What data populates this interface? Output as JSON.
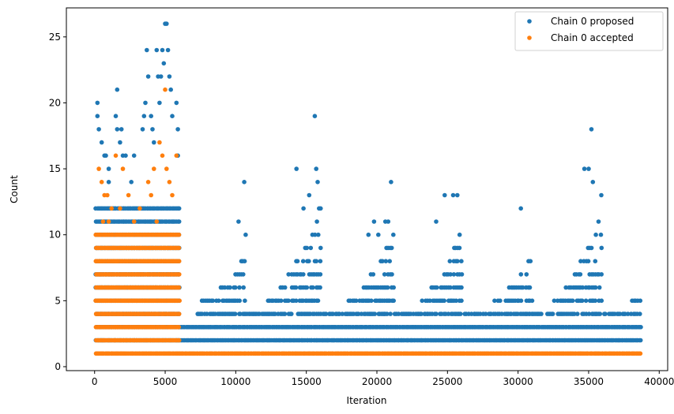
{
  "chart_data": {
    "type": "scatter",
    "xlabel": "Iteration",
    "ylabel": "Count",
    "xlim": [
      -2000,
      40600
    ],
    "ylim": [
      -0.3,
      27.2
    ],
    "xticks": [
      0,
      5000,
      10000,
      15000,
      20000,
      25000,
      30000,
      35000,
      40000
    ],
    "yticks": [
      0,
      5,
      10,
      15,
      20,
      25
    ],
    "legend_position": "top-right",
    "series": [
      {
        "name": "Chain 0 proposed",
        "color": "#1f77b4",
        "bands": [
          {
            "x0": 100,
            "x1": 6000,
            "y_min": 2,
            "y_max": 12,
            "density": 1.0
          },
          {
            "x0": 6000,
            "x1": 38700,
            "y_min": 2,
            "y_max": 3,
            "density": 1.0
          },
          {
            "x0": 7300,
            "x1": 38700,
            "y_min": 4,
            "y_max": 4,
            "density": 0.7
          }
        ],
        "clusters": [
          {
            "x_start": 6000,
            "x_end": 10700,
            "peak_x": 10600,
            "peak_count": 8
          },
          {
            "x_start": 11200,
            "x_end": 16000,
            "peak_x": 15500,
            "peak_count": 12
          },
          {
            "x_start": 16800,
            "x_end": 21200,
            "peak_x": 20800,
            "peak_count": 10
          },
          {
            "x_start": 22000,
            "x_end": 26000,
            "peak_x": 25500,
            "peak_count": 10
          },
          {
            "x_start": 27000,
            "x_end": 31000,
            "peak_x": 30500,
            "peak_count": 8
          },
          {
            "x_start": 31500,
            "x_end": 36000,
            "peak_x": 35500,
            "peak_count": 12
          },
          {
            "x_start": 36500,
            "x_end": 38700,
            "peak_x": 38500,
            "peak_count": 5
          }
        ],
        "points": [
          [
            200,
            20
          ],
          [
            200,
            19
          ],
          [
            300,
            18
          ],
          [
            500,
            17
          ],
          [
            700,
            16
          ],
          [
            800,
            16
          ],
          [
            1000,
            15
          ],
          [
            1000,
            14
          ],
          [
            1500,
            19
          ],
          [
            1600,
            21
          ],
          [
            1600,
            18
          ],
          [
            1800,
            17
          ],
          [
            1900,
            18
          ],
          [
            2000,
            16
          ],
          [
            2200,
            16
          ],
          [
            2600,
            14
          ],
          [
            2800,
            16
          ],
          [
            3400,
            18
          ],
          [
            3500,
            19
          ],
          [
            3600,
            20
          ],
          [
            3700,
            24
          ],
          [
            3800,
            22
          ],
          [
            4000,
            19
          ],
          [
            4100,
            18
          ],
          [
            4200,
            17
          ],
          [
            4400,
            24
          ],
          [
            4500,
            22
          ],
          [
            4600,
            20
          ],
          [
            4700,
            22
          ],
          [
            4800,
            24
          ],
          [
            4900,
            23
          ],
          [
            5000,
            26
          ],
          [
            5100,
            26
          ],
          [
            5200,
            24
          ],
          [
            5300,
            22
          ],
          [
            5400,
            21
          ],
          [
            5500,
            19
          ],
          [
            5800,
            20
          ],
          [
            5900,
            18
          ],
          [
            5900,
            16
          ],
          [
            10200,
            11
          ],
          [
            10600,
            14
          ],
          [
            10700,
            10
          ],
          [
            14300,
            15
          ],
          [
            14800,
            12
          ],
          [
            15200,
            13
          ],
          [
            15600,
            19
          ],
          [
            15700,
            15
          ],
          [
            15800,
            14
          ],
          [
            15900,
            12
          ],
          [
            19400,
            10
          ],
          [
            19800,
            11
          ],
          [
            20100,
            10
          ],
          [
            20600,
            11
          ],
          [
            20800,
            11
          ],
          [
            21000,
            14
          ],
          [
            24200,
            11
          ],
          [
            24800,
            13
          ],
          [
            25400,
            13
          ],
          [
            25700,
            13
          ],
          [
            30200,
            12
          ],
          [
            34700,
            15
          ],
          [
            35000,
            15
          ],
          [
            35200,
            18
          ],
          [
            35300,
            14
          ],
          [
            35700,
            11
          ],
          [
            35900,
            13
          ]
        ]
      },
      {
        "name": "Chain 0 accepted",
        "color": "#ff7f0e",
        "bands": [
          {
            "x0": 100,
            "x1": 6000,
            "y_min": 1,
            "y_max": 10,
            "density": 1.0
          },
          {
            "x0": 6000,
            "x1": 38700,
            "y_min": 1,
            "y_max": 1,
            "density": 1.0
          }
        ],
        "points": [
          [
            300,
            15
          ],
          [
            500,
            14
          ],
          [
            700,
            13
          ],
          [
            900,
            13
          ],
          [
            1200,
            12
          ],
          [
            1500,
            16
          ],
          [
            2000,
            15
          ],
          [
            2400,
            13
          ],
          [
            3200,
            12
          ],
          [
            3800,
            14
          ],
          [
            4000,
            13
          ],
          [
            4200,
            15
          ],
          [
            4600,
            17
          ],
          [
            4800,
            16
          ],
          [
            5000,
            21
          ],
          [
            5100,
            15
          ],
          [
            5300,
            14
          ],
          [
            5500,
            13
          ],
          [
            5800,
            16
          ],
          [
            600,
            11
          ],
          [
            1000,
            11
          ],
          [
            2800,
            11
          ],
          [
            4400,
            11
          ],
          [
            1800,
            12
          ]
        ]
      }
    ]
  }
}
